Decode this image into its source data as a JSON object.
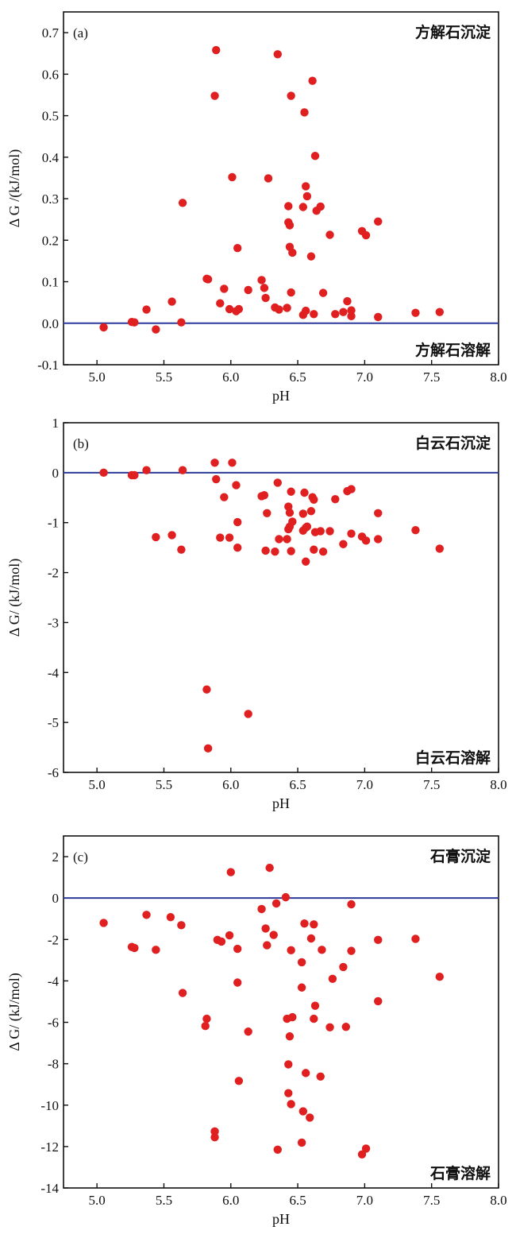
{
  "colors": {
    "point": "#e02020",
    "reference_line": "#2b3a9a",
    "axes": "#111111"
  },
  "chart_data": [
    {
      "type": "scatter",
      "panel_label": "(a)",
      "xlabel": "pH",
      "ylabel": "Δ G /(kJ/mol)",
      "xlim": [
        4.75,
        8.0
      ],
      "ylim": [
        -0.1,
        0.75
      ],
      "xticks": [
        "5.0",
        "5.5",
        "6.0",
        "6.5",
        "7.0",
        "7.5",
        "8.0"
      ],
      "xtick_values": [
        5.0,
        5.5,
        6.0,
        6.5,
        7.0,
        7.5,
        8.0
      ],
      "yticks": [
        "-0.1",
        "0.0",
        "0.1",
        "0.2",
        "0.3",
        "0.4",
        "0.5",
        "0.6",
        "0.7"
      ],
      "ytick_values": [
        -0.1,
        0.0,
        0.1,
        0.2,
        0.3,
        0.4,
        0.5,
        0.6,
        0.7
      ],
      "reference_line": 0,
      "annotation_top": "方解石沉淀",
      "annotation_bottom": "方解石溶解",
      "points": [
        [
          5.05,
          -0.01
        ],
        [
          5.26,
          0.003
        ],
        [
          5.28,
          0.002
        ],
        [
          5.37,
          0.033
        ],
        [
          5.44,
          -0.015
        ],
        [
          5.56,
          0.052
        ],
        [
          5.63,
          0.002
        ],
        [
          5.64,
          0.29
        ],
        [
          5.82,
          0.107
        ],
        [
          5.83,
          0.106
        ],
        [
          5.88,
          0.548
        ],
        [
          5.89,
          0.658
        ],
        [
          5.92,
          0.048
        ],
        [
          5.95,
          0.083
        ],
        [
          5.99,
          0.034
        ],
        [
          6.01,
          0.352
        ],
        [
          6.04,
          0.029
        ],
        [
          6.05,
          0.181
        ],
        [
          6.06,
          0.034
        ],
        [
          6.13,
          0.08
        ],
        [
          6.23,
          0.104
        ],
        [
          6.25,
          0.085
        ],
        [
          6.26,
          0.061
        ],
        [
          6.28,
          0.349
        ],
        [
          6.33,
          0.038
        ],
        [
          6.35,
          0.648
        ],
        [
          6.36,
          0.033
        ],
        [
          6.42,
          0.037
        ],
        [
          6.43,
          0.243
        ],
        [
          6.43,
          0.282
        ],
        [
          6.44,
          0.236
        ],
        [
          6.44,
          0.184
        ],
        [
          6.45,
          0.074
        ],
        [
          6.45,
          0.548
        ],
        [
          6.46,
          0.17
        ],
        [
          6.54,
          0.02
        ],
        [
          6.54,
          0.28
        ],
        [
          6.55,
          0.508
        ],
        [
          6.56,
          0.03
        ],
        [
          6.56,
          0.33
        ],
        [
          6.57,
          0.306
        ],
        [
          6.6,
          0.161
        ],
        [
          6.61,
          0.584
        ],
        [
          6.62,
          0.022
        ],
        [
          6.63,
          0.403
        ],
        [
          6.64,
          0.271
        ],
        [
          6.67,
          0.281
        ],
        [
          6.69,
          0.073
        ],
        [
          6.74,
          0.213
        ],
        [
          6.78,
          0.022
        ],
        [
          6.84,
          0.027
        ],
        [
          6.87,
          0.053
        ],
        [
          6.9,
          0.031
        ],
        [
          6.9,
          0.017
        ],
        [
          6.98,
          0.222
        ],
        [
          7.01,
          0.212
        ],
        [
          7.1,
          0.245
        ],
        [
          7.1,
          0.015
        ],
        [
          7.38,
          0.025
        ],
        [
          7.56,
          0.027
        ]
      ]
    },
    {
      "type": "scatter",
      "panel_label": "(b)",
      "xlabel": "pH",
      "ylabel": "Δ G/ (kJ/mol)",
      "xlim": [
        4.75,
        8.0
      ],
      "ylim": [
        -6,
        1
      ],
      "xticks": [
        "5.0",
        "5.5",
        "6.0",
        "6.5",
        "7.0",
        "7.5",
        "8.0"
      ],
      "xtick_values": [
        5.0,
        5.5,
        6.0,
        6.5,
        7.0,
        7.5,
        8.0
      ],
      "yticks": [
        "-6",
        "-5",
        "-4",
        "-3",
        "-2",
        "-1",
        "0",
        "1"
      ],
      "ytick_values": [
        -6,
        -5,
        -4,
        -3,
        -2,
        -1,
        0,
        1
      ],
      "reference_line": 0,
      "annotation_top": "白云石沉淀",
      "annotation_bottom": "白云石溶解",
      "points": [
        [
          5.05,
          0.0
        ],
        [
          5.26,
          -0.05
        ],
        [
          5.28,
          -0.05
        ],
        [
          5.37,
          0.05
        ],
        [
          5.44,
          -1.29
        ],
        [
          5.56,
          -1.25
        ],
        [
          5.63,
          -1.54
        ],
        [
          5.64,
          0.05
        ],
        [
          5.82,
          -4.34
        ],
        [
          5.83,
          -5.52
        ],
        [
          5.88,
          0.2
        ],
        [
          5.89,
          -0.13
        ],
        [
          5.92,
          -1.3
        ],
        [
          5.95,
          -0.49
        ],
        [
          5.99,
          -1.3
        ],
        [
          6.01,
          0.2
        ],
        [
          6.04,
          -0.25
        ],
        [
          6.05,
          -0.99
        ],
        [
          6.05,
          -1.5
        ],
        [
          6.13,
          -4.83
        ],
        [
          6.23,
          -0.47
        ],
        [
          6.25,
          -0.45
        ],
        [
          6.26,
          -1.56
        ],
        [
          6.27,
          -0.81
        ],
        [
          6.33,
          -1.58
        ],
        [
          6.35,
          -0.2
        ],
        [
          6.36,
          -1.33
        ],
        [
          6.42,
          -1.33
        ],
        [
          6.43,
          -0.68
        ],
        [
          6.43,
          -1.13
        ],
        [
          6.44,
          -0.8
        ],
        [
          6.44,
          -1.08
        ],
        [
          6.45,
          -0.38
        ],
        [
          6.46,
          -0.98
        ],
        [
          6.45,
          -1.57
        ],
        [
          6.54,
          -0.82
        ],
        [
          6.54,
          -1.16
        ],
        [
          6.55,
          -0.4
        ],
        [
          6.56,
          -1.78
        ],
        [
          6.56,
          -1.1
        ],
        [
          6.57,
          -1.08
        ],
        [
          6.6,
          -0.77
        ],
        [
          6.61,
          -0.49
        ],
        [
          6.62,
          -1.54
        ],
        [
          6.62,
          -0.54
        ],
        [
          6.63,
          -1.19
        ],
        [
          6.67,
          -1.17
        ],
        [
          6.69,
          -1.58
        ],
        [
          6.74,
          -1.17
        ],
        [
          6.78,
          -0.53
        ],
        [
          6.84,
          -1.43
        ],
        [
          6.87,
          -0.37
        ],
        [
          6.9,
          -1.22
        ],
        [
          6.9,
          -0.33
        ],
        [
          6.98,
          -1.28
        ],
        [
          7.01,
          -1.36
        ],
        [
          7.1,
          -1.33
        ],
        [
          7.1,
          -0.81
        ],
        [
          7.38,
          -1.15
        ],
        [
          7.56,
          -1.52
        ]
      ]
    },
    {
      "type": "scatter",
      "panel_label": "(c)",
      "xlabel": "pH",
      "ylabel": "Δ G/ (kJ/mol)",
      "xlim": [
        4.75,
        8.0
      ],
      "ylim": [
        -14,
        3
      ],
      "xticks": [
        "5.0",
        "5.5",
        "6.0",
        "6.5",
        "7.0",
        "7.5",
        "8.0"
      ],
      "xtick_values": [
        5.0,
        5.5,
        6.0,
        6.5,
        7.0,
        7.5,
        8.0
      ],
      "yticks": [
        "-14",
        "-12",
        "-10",
        "-8",
        "-6",
        "-4",
        "-2",
        "0",
        "2"
      ],
      "ytick_values": [
        -14,
        -12,
        -10,
        -8,
        -6,
        -4,
        -2,
        0,
        2
      ],
      "reference_line": 0,
      "annotation_top": "石膏沉淀",
      "annotation_bottom": "石膏溶解",
      "points": [
        [
          5.05,
          -1.2
        ],
        [
          5.26,
          -2.36
        ],
        [
          5.28,
          -2.41
        ],
        [
          5.37,
          -0.81
        ],
        [
          5.44,
          -2.5
        ],
        [
          5.55,
          -0.92
        ],
        [
          5.63,
          -1.31
        ],
        [
          5.64,
          -4.58
        ],
        [
          5.82,
          -5.83
        ],
        [
          5.81,
          -6.18
        ],
        [
          5.88,
          -11.27
        ],
        [
          5.88,
          -11.55
        ],
        [
          5.9,
          -2.02
        ],
        [
          5.93,
          -2.1
        ],
        [
          5.99,
          -1.8
        ],
        [
          6.0,
          1.25
        ],
        [
          6.05,
          -4.08
        ],
        [
          6.05,
          -2.45
        ],
        [
          6.06,
          -8.83
        ],
        [
          6.13,
          -6.45
        ],
        [
          6.23,
          -0.53
        ],
        [
          6.26,
          -1.47
        ],
        [
          6.27,
          -2.28
        ],
        [
          6.29,
          1.46
        ],
        [
          6.32,
          -1.78
        ],
        [
          6.34,
          -0.26
        ],
        [
          6.35,
          -12.15
        ],
        [
          6.41,
          0.04
        ],
        [
          6.42,
          -5.83
        ],
        [
          6.43,
          -9.42
        ],
        [
          6.43,
          -8.03
        ],
        [
          6.44,
          -6.68
        ],
        [
          6.45,
          -9.95
        ],
        [
          6.45,
          -2.52
        ],
        [
          6.46,
          -5.75
        ],
        [
          6.53,
          -11.81
        ],
        [
          6.53,
          -4.32
        ],
        [
          6.53,
          -3.1
        ],
        [
          6.54,
          -10.3
        ],
        [
          6.55,
          -1.23
        ],
        [
          6.56,
          -8.45
        ],
        [
          6.59,
          -10.6
        ],
        [
          6.6,
          -1.95
        ],
        [
          6.62,
          -1.27
        ],
        [
          6.62,
          -5.83
        ],
        [
          6.63,
          -5.2
        ],
        [
          6.67,
          -8.62
        ],
        [
          6.68,
          -2.5
        ],
        [
          6.74,
          -6.24
        ],
        [
          6.76,
          -3.9
        ],
        [
          6.84,
          -3.33
        ],
        [
          6.86,
          -6.22
        ],
        [
          6.9,
          -0.3
        ],
        [
          6.9,
          -2.55
        ],
        [
          6.98,
          -12.38
        ],
        [
          7.01,
          -12.1
        ],
        [
          7.1,
          -4.98
        ],
        [
          7.1,
          -2.02
        ],
        [
          7.38,
          -1.97
        ],
        [
          7.56,
          -3.8
        ]
      ]
    }
  ]
}
